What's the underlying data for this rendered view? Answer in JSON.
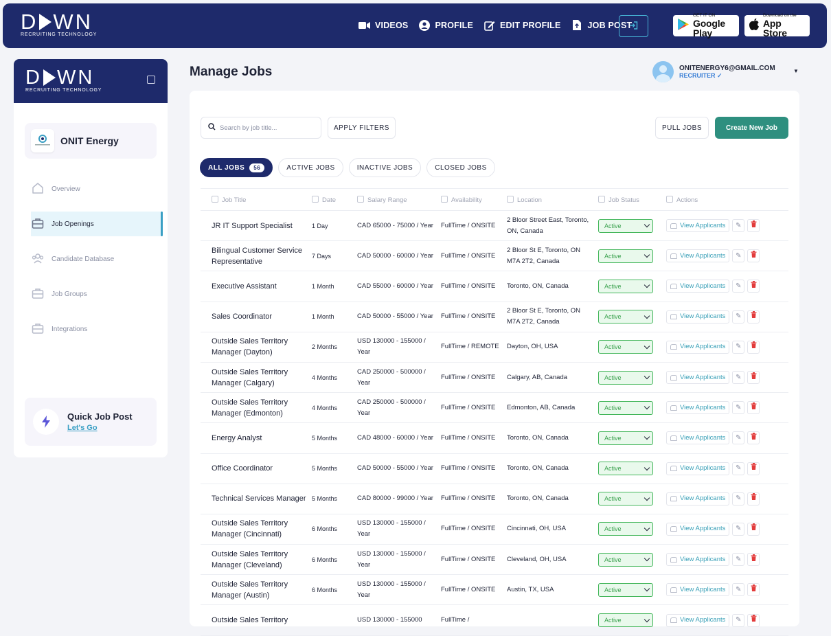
{
  "brand": {
    "name": "DAWN",
    "tagline": "RECRUITING TECHNOLOGY"
  },
  "nav": {
    "links": [
      {
        "label": "VIDEOS",
        "icon": "video-icon"
      },
      {
        "label": "PROFILE",
        "icon": "user-circle-icon"
      },
      {
        "label": "EDIT PROFILE",
        "icon": "edit-icon"
      },
      {
        "label": "JOB POST",
        "icon": "upload-file-icon"
      }
    ],
    "google_play": {
      "line1": "GET IT ON",
      "line2": "Google Play"
    },
    "app_store": {
      "line1": "Download on the",
      "line2": "App Store"
    }
  },
  "sidebar": {
    "company": "ONIT Energy",
    "items": [
      {
        "label": "Overview",
        "icon": "home-icon"
      },
      {
        "label": "Job Openings",
        "icon": "briefcase-icon"
      },
      {
        "label": "Candidate Database",
        "icon": "users-icon"
      },
      {
        "label": "Job Groups",
        "icon": "briefcase-icon"
      },
      {
        "label": "Integrations",
        "icon": "briefcase-icon"
      }
    ],
    "quick_post": {
      "title": "Quick Job Post",
      "link": "Let's Go"
    }
  },
  "header": {
    "title": "Manage Jobs",
    "email": "ONITENERGY6@GMAIL.COM",
    "role": "RECRUITER ✓"
  },
  "toolbar": {
    "search_placeholder": "Search by job title...",
    "apply_filters": "APPLY FILTERS",
    "pull_jobs": "PULL JOBS",
    "create_job": "Create New Job"
  },
  "tabs": {
    "all": "ALL JOBS",
    "all_count": "56",
    "active": "ACTIVE JOBS",
    "inactive": "INACTIVE JOBS",
    "closed": "CLOSED JOBS"
  },
  "columns": {
    "title": "Job Title",
    "date": "Date",
    "salary": "Salary Range",
    "availability": "Availability",
    "location": "Location",
    "status": "Job Status",
    "actions": "Actions"
  },
  "actions": {
    "view": "View Applicants"
  },
  "jobs": [
    {
      "title": "JR IT Support Specialist",
      "date": "1 Day",
      "salary": "CAD 65000 - 75000 / Year",
      "availability": "FullTime / ONSITE",
      "location": "2 Bloor Street East, Toronto, ON, Canada",
      "status": "Active"
    },
    {
      "title": "Bilingual Customer Service Representative",
      "date": "7 Days",
      "salary": "CAD 50000 - 60000 / Year",
      "availability": "FullTime / ONSITE",
      "location": "2 Bloor St E, Toronto, ON M7A 2T2, Canada",
      "status": "Active"
    },
    {
      "title": "Executive Assistant",
      "date": "1 Month",
      "salary": "CAD 55000 - 60000 / Year",
      "availability": "FullTime / ONSITE",
      "location": "Toronto, ON, Canada",
      "status": "Active"
    },
    {
      "title": "Sales Coordinator",
      "date": "1 Month",
      "salary": "CAD 50000 - 55000 / Year",
      "availability": "FullTime / ONSITE",
      "location": "2 Bloor St E, Toronto, ON M7A 2T2, Canada",
      "status": "Active"
    },
    {
      "title": "Outside Sales Territory Manager (Dayton)",
      "date": "2 Months",
      "salary": "USD 130000 - 155000 / Year",
      "availability": "FullTime / REMOTE",
      "location": "Dayton, OH, USA",
      "status": "Active"
    },
    {
      "title": "Outside Sales Territory Manager (Calgary)",
      "date": "4 Months",
      "salary": "CAD 250000 - 500000 / Year",
      "availability": "FullTime / ONSITE",
      "location": "Calgary, AB, Canada",
      "status": "Active"
    },
    {
      "title": "Outside Sales Territory Manager (Edmonton)",
      "date": "4 Months",
      "salary": "CAD 250000 - 500000 / Year",
      "availability": "FullTime / ONSITE",
      "location": "Edmonton, AB, Canada",
      "status": "Active"
    },
    {
      "title": "Energy Analyst",
      "date": "5 Months",
      "salary": "CAD 48000 - 60000 / Year",
      "availability": "FullTime / ONSITE",
      "location": "Toronto, ON, Canada",
      "status": "Active"
    },
    {
      "title": "Office Coordinator",
      "date": "5 Months",
      "salary": "CAD 50000 - 55000 / Year",
      "availability": "FullTime / ONSITE",
      "location": "Toronto, ON, Canada",
      "status": "Active"
    },
    {
      "title": "Technical Services Manager",
      "date": "5 Months",
      "salary": "CAD 80000 - 99000 / Year",
      "availability": "FullTime / ONSITE",
      "location": "Toronto, ON, Canada",
      "status": "Active"
    },
    {
      "title": "Outside Sales Territory Manager (Cincinnati)",
      "date": "6 Months",
      "salary": "USD 130000 - 155000 / Year",
      "availability": "FullTime / ONSITE",
      "location": "Cincinnati, OH, USA",
      "status": "Active"
    },
    {
      "title": "Outside Sales Territory Manager (Cleveland)",
      "date": "6 Months",
      "salary": "USD 130000 - 155000 / Year",
      "availability": "FullTime / ONSITE",
      "location": "Cleveland, OH, USA",
      "status": "Active"
    },
    {
      "title": "Outside Sales Territory Manager (Austin)",
      "date": "6 Months",
      "salary": "USD 130000 - 155000 / Year",
      "availability": "FullTime / ONSITE",
      "location": "Austin, TX, USA",
      "status": "Active"
    },
    {
      "title": "Outside Sales Territory",
      "date": "",
      "salary": "USD 130000 - 155000",
      "availability": "FullTime /",
      "location": "",
      "status": "Active"
    }
  ],
  "colors": {
    "navy": "#1e2a6b",
    "teal": "#2e8f7f",
    "active_green": "#43b65a",
    "delete_red": "#e23b3b"
  }
}
